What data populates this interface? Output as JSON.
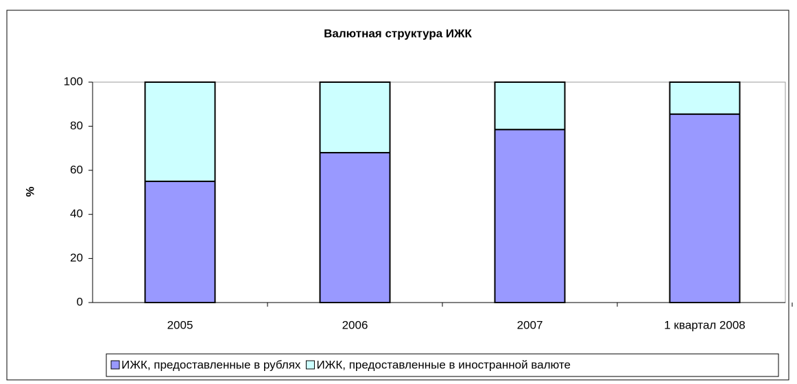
{
  "chart_data": {
    "type": "bar",
    "stacked": true,
    "title": "Валютная структура ИЖК",
    "y_label": "%",
    "categories": [
      "2005",
      "2006",
      "2007",
      "1 квартал 2008"
    ],
    "series": [
      {
        "name": "ИЖК, предоставленные в рублях",
        "color": "#9999ff",
        "values": [
          55,
          68,
          78.5,
          85.5
        ]
      },
      {
        "name": "ИЖК, предоставленные в иностранной валюте",
        "color": "#ccffff",
        "values": [
          45,
          32,
          21.5,
          14.5
        ]
      }
    ],
    "ylim": [
      0,
      100
    ],
    "yticks": [
      0,
      20,
      40,
      60,
      80,
      100
    ],
    "legend": "bottom"
  }
}
